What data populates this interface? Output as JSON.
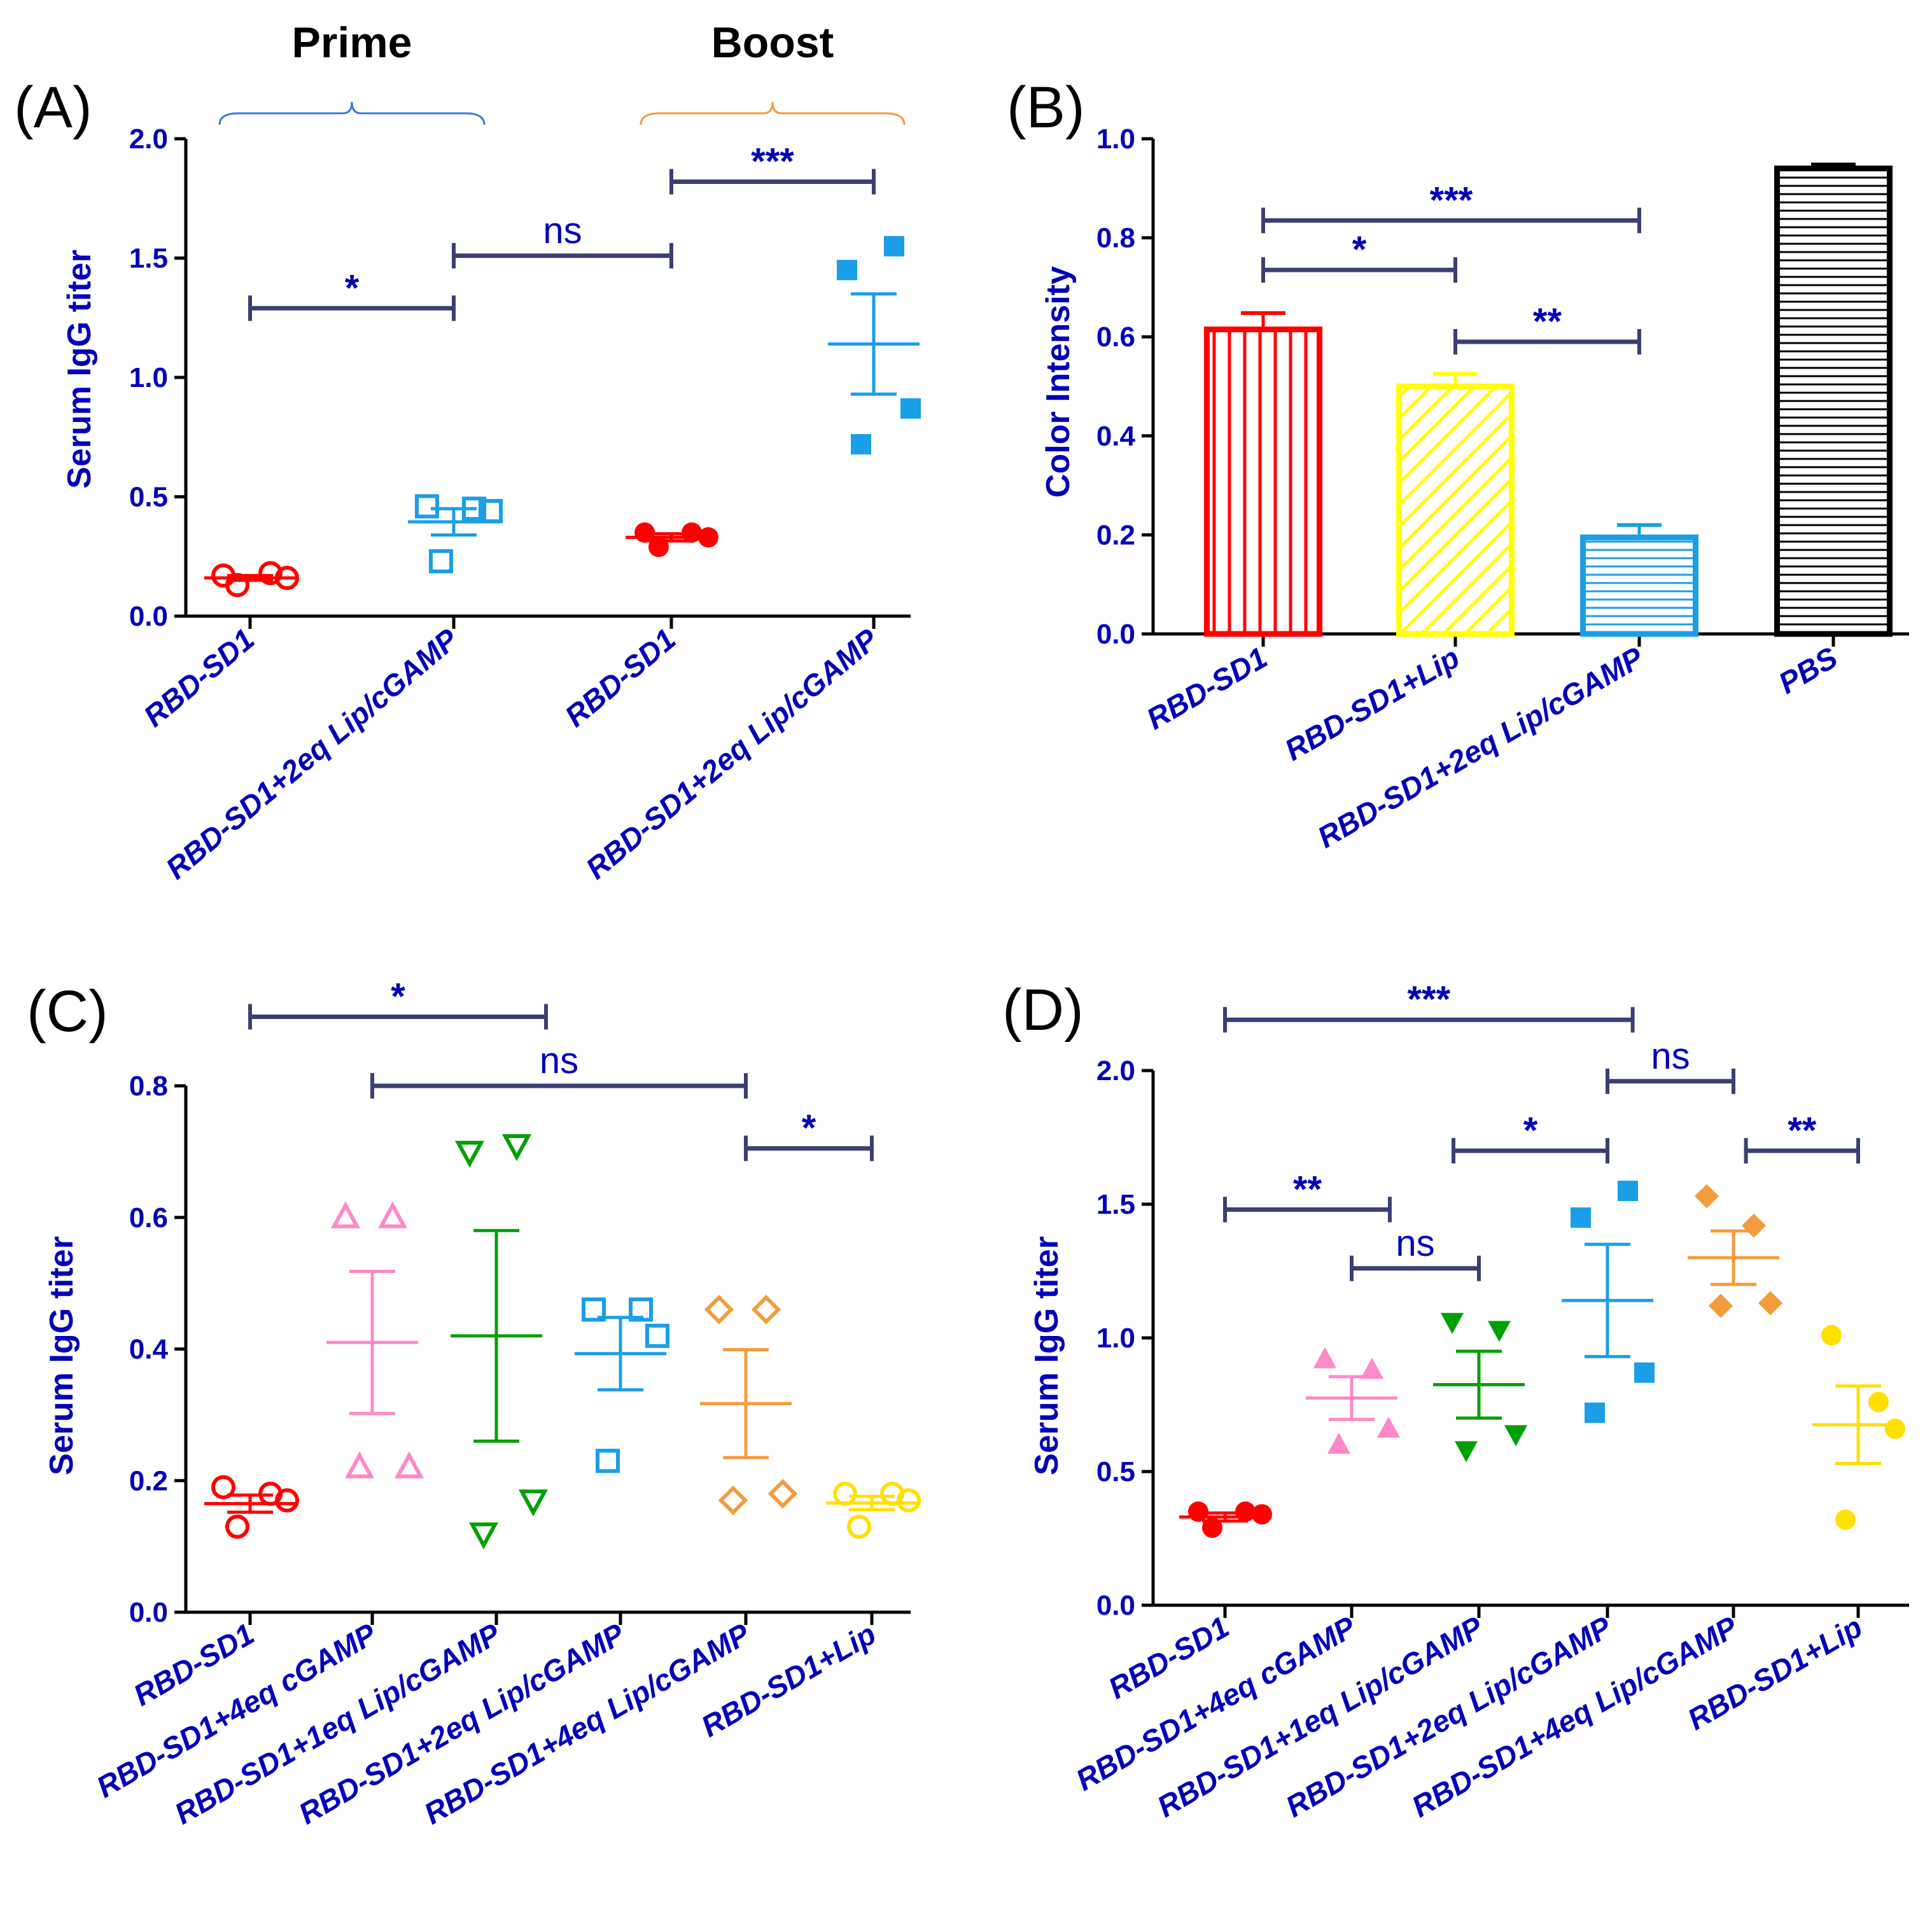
{
  "colors": {
    "text": "#0000b8",
    "axis": "#000000",
    "bracket": "#3b3f73",
    "prime_bracket": "#3a7bd5",
    "boost_bracket": "#f39c3d"
  },
  "chart_data": [
    {
      "id": "A",
      "type": "scatter",
      "panel_label": "(A)",
      "ylabel": "Serum IgG titer",
      "ylim": [
        0,
        2.0
      ],
      "yticks": [
        "0.0",
        "0.5",
        "1.0",
        "1.5",
        "2.0"
      ],
      "categories": [
        "RBD-SD1",
        "RBD-SD1+2eq Lip/cGAMP",
        "RBD-SD1",
        "RBD-SD1+2eq Lip/cGAMP"
      ],
      "groups": [
        {
          "name": "Prime",
          "members": [
            0,
            1
          ],
          "color": "#3a7bd5"
        },
        {
          "name": "Boost",
          "members": [
            2,
            3
          ],
          "color": "#f39c3d"
        }
      ],
      "series": [
        {
          "category": "RBD-SD1",
          "marker": "circle",
          "filled": false,
          "color": "#ff0000",
          "points": [
            0.17,
            0.13,
            0.18,
            0.16
          ],
          "mean": 0.16,
          "sem": 0.01
        },
        {
          "category": "RBD-SD1+2eq Lip/cGAMP",
          "marker": "square",
          "filled": false,
          "color": "#1a9ee8",
          "points": [
            0.46,
            0.23,
            0.45,
            0.44
          ],
          "mean": 0.395,
          "sem": 0.055
        },
        {
          "category": "RBD-SD1",
          "marker": "circle",
          "filled": true,
          "color": "#ff0000",
          "points": [
            0.35,
            0.29,
            0.35,
            0.33
          ],
          "mean": 0.33,
          "sem": 0.015
        },
        {
          "category": "RBD-SD1+2eq Lip/cGAMP",
          "marker": "square",
          "filled": true,
          "color": "#1a9ee8",
          "points": [
            1.45,
            0.72,
            1.55,
            0.87
          ],
          "mean": 1.14,
          "sem": 0.21
        }
      ],
      "significance": [
        {
          "from": 0,
          "to": 1,
          "y": 1.29,
          "label": "*"
        },
        {
          "from": 1,
          "to": 2,
          "y": 1.51,
          "label": "ns"
        },
        {
          "from": 2,
          "to": 3,
          "y": 1.82,
          "label": "***"
        }
      ]
    },
    {
      "id": "B",
      "type": "bar",
      "panel_label": "(B)",
      "ylabel": "Color Intensity",
      "ylim": [
        0,
        1.0
      ],
      "yticks": [
        "0.0",
        "0.2",
        "0.4",
        "0.6",
        "0.8",
        "1.0"
      ],
      "categories": [
        "RBD-SD1",
        "RBD-SD1+Lip",
        "RBD-SD1+2eq Lip/cGAMP",
        "PBS"
      ],
      "series": [
        {
          "category": "RBD-SD1",
          "value": 0.615,
          "error": 0.033,
          "color": "#ff0000",
          "pattern": "vertical"
        },
        {
          "category": "RBD-SD1+Lip",
          "value": 0.5,
          "error": 0.025,
          "color": "#ffff00",
          "pattern": "diagonal"
        },
        {
          "category": "RBD-SD1+2eq Lip/cGAMP",
          "value": 0.195,
          "error": 0.025,
          "color": "#1a9ee8",
          "pattern": "horizontal"
        },
        {
          "category": "PBS",
          "value": 0.94,
          "error": 0.008,
          "color": "#000000",
          "pattern": "horizontal"
        }
      ],
      "significance": [
        {
          "from": 0,
          "to": 2,
          "y": 0.835,
          "label": "***"
        },
        {
          "from": 0,
          "to": 1,
          "y": 0.735,
          "label": "*"
        },
        {
          "from": 1,
          "to": 2,
          "y": 0.59,
          "label": "**"
        }
      ]
    },
    {
      "id": "C",
      "type": "scatter",
      "panel_label": "(C)",
      "ylabel": "Serum IgG titer",
      "ylim": [
        0,
        0.8
      ],
      "yticks": [
        "0.0",
        "0.2",
        "0.4",
        "0.6",
        "0.8"
      ],
      "categories": [
        "RBD-SD1",
        "RBD-SD1+4eq cGAMP",
        "RBD-SD1+1eq Lip/cGAMP",
        "RBD-SD1+2eq Lip/cGAMP",
        "RBD-SD1+4eq Lip/cGAMP",
        "RBD-SD1+Lip"
      ],
      "series": [
        {
          "category": "RBD-SD1",
          "marker": "circle",
          "filled": false,
          "color": "#ff0000",
          "points": [
            0.19,
            0.13,
            0.18,
            0.17
          ],
          "mean": 0.165,
          "sem": 0.013
        },
        {
          "category": "RBD-SD1+4eq cGAMP",
          "marker": "triangle-up",
          "filled": false,
          "color": "#ff88c8",
          "points": [
            0.6,
            0.22,
            0.6,
            0.22
          ],
          "mean": 0.41,
          "sem": 0.108
        },
        {
          "category": "RBD-SD1+1eq Lip/cGAMP",
          "marker": "triangle-down",
          "filled": false,
          "color": "#00a000",
          "points": [
            0.7,
            0.12,
            0.71,
            0.17
          ],
          "mean": 0.42,
          "sem": 0.16
        },
        {
          "category": "RBD-SD1+2eq Lip/cGAMP",
          "marker": "square",
          "filled": false,
          "color": "#1a9ee8",
          "points": [
            0.46,
            0.23,
            0.46,
            0.42
          ],
          "mean": 0.393,
          "sem": 0.055
        },
        {
          "category": "RBD-SD1+4eq Lip/cGAMP",
          "marker": "diamond",
          "filled": false,
          "color": "#f39c3d",
          "points": [
            0.46,
            0.17,
            0.46,
            0.18
          ],
          "mean": 0.317,
          "sem": 0.082
        },
        {
          "category": "RBD-SD1+Lip",
          "marker": "circle",
          "filled": false,
          "color": "#ffe000",
          "points": [
            0.18,
            0.13,
            0.18,
            0.17
          ],
          "mean": 0.166,
          "sem": 0.01
        }
      ],
      "significance": [
        {
          "from": 0,
          "to": 2.4,
          "y": 0.905,
          "label": "*"
        },
        {
          "from": 1,
          "to": 4,
          "y": 0.8,
          "label": "ns"
        },
        {
          "from": 4,
          "to": 5,
          "y": 0.705,
          "label": "*"
        }
      ]
    },
    {
      "id": "D",
      "type": "scatter",
      "panel_label": "(D)",
      "ylabel": "Serum IgG titer",
      "ylim": [
        0,
        2.0
      ],
      "yticks": [
        "0.0",
        "0.5",
        "1.0",
        "1.5",
        "2.0"
      ],
      "categories": [
        "RBD-SD1",
        "RBD-SD1+4eq cGAMP",
        "RBD-SD1+1eq Lip/cGAMP",
        "RBD-SD1+2eq Lip/cGAMP",
        "RBD-SD1+4eq Lip/cGAMP",
        "RBD-SD1+Lip"
      ],
      "series": [
        {
          "category": "RBD-SD1",
          "marker": "circle",
          "filled": true,
          "color": "#ff0000",
          "points": [
            0.35,
            0.29,
            0.35,
            0.34
          ],
          "mean": 0.33,
          "sem": 0.015
        },
        {
          "category": "RBD-SD1+4eq cGAMP",
          "marker": "triangle-up",
          "filled": true,
          "color": "#ff88c8",
          "points": [
            0.92,
            0.6,
            0.88,
            0.66
          ],
          "mean": 0.775,
          "sem": 0.08
        },
        {
          "category": "RBD-SD1+1eq Lip/cGAMP",
          "marker": "triangle-down",
          "filled": true,
          "color": "#00a000",
          "points": [
            1.06,
            0.58,
            1.03,
            0.64
          ],
          "mean": 0.825,
          "sem": 0.125
        },
        {
          "category": "RBD-SD1+2eq Lip/cGAMP",
          "marker": "square",
          "filled": true,
          "color": "#1a9ee8",
          "points": [
            1.45,
            0.72,
            1.55,
            0.87
          ],
          "mean": 1.14,
          "sem": 0.21
        },
        {
          "category": "RBD-SD1+4eq Lip/cGAMP",
          "marker": "diamond",
          "filled": true,
          "color": "#f39c3d",
          "points": [
            1.53,
            1.12,
            1.42,
            1.13
          ],
          "mean": 1.3,
          "sem": 0.1
        },
        {
          "category": "RBD-SD1+Lip",
          "marker": "circle",
          "filled": true,
          "color": "#ffe000",
          "points": [
            1.01,
            0.32,
            0.76,
            0.66
          ],
          "mean": 0.675,
          "sem": 0.145
        }
      ],
      "significance": [
        {
          "from": 0,
          "to": 3.2,
          "y": 2.19,
          "label": "***"
        },
        {
          "from": 0,
          "to": 1.3,
          "y": 1.48,
          "label": "**"
        },
        {
          "from": 1,
          "to": 2,
          "y": 1.26,
          "label": "ns"
        },
        {
          "from": 1.8,
          "to": 3,
          "y": 1.7,
          "label": "*"
        },
        {
          "from": 3,
          "to": 4,
          "y": 1.96,
          "label": "ns"
        },
        {
          "from": 4.1,
          "to": 5,
          "y": 1.7,
          "label": "**"
        }
      ]
    }
  ]
}
